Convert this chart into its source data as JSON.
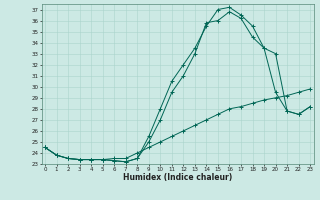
{
  "xlabel": "Humidex (Indice chaleur)",
  "background_color": "#cce9e4",
  "grid_color": "#aad4cc",
  "line_color": "#006655",
  "xlim": [
    0,
    23
  ],
  "ylim": [
    23,
    37.5
  ],
  "yticks": [
    23,
    24,
    25,
    26,
    27,
    28,
    29,
    30,
    31,
    32,
    33,
    34,
    35,
    36,
    37
  ],
  "xticks": [
    0,
    1,
    2,
    3,
    4,
    5,
    6,
    7,
    8,
    9,
    10,
    11,
    12,
    13,
    14,
    15,
    16,
    17,
    18,
    19,
    20,
    21,
    22,
    23
  ],
  "series": [
    [
      24.5,
      23.8,
      23.5,
      23.4,
      23.4,
      23.4,
      23.3,
      23.2,
      23.5,
      25.5,
      28.0,
      30.5,
      32.0,
      33.5,
      35.5,
      37.0,
      37.2,
      36.5,
      35.5,
      33.5,
      29.5,
      27.8,
      27.5,
      28.2
    ],
    [
      24.5,
      23.8,
      23.5,
      23.4,
      23.4,
      23.4,
      23.3,
      23.2,
      23.5,
      25.0,
      27.0,
      29.5,
      31.0,
      33.0,
      35.8,
      36.0,
      36.8,
      36.2,
      34.5,
      33.5,
      33.0,
      27.8,
      27.5,
      28.2
    ],
    [
      24.5,
      23.8,
      23.5,
      23.4,
      23.4,
      23.4,
      23.5,
      23.5,
      24.0,
      24.5,
      25.0,
      25.5,
      26.0,
      26.5,
      27.0,
      27.5,
      28.0,
      28.2,
      28.5,
      28.8,
      29.0,
      29.2,
      29.5,
      29.8
    ]
  ]
}
